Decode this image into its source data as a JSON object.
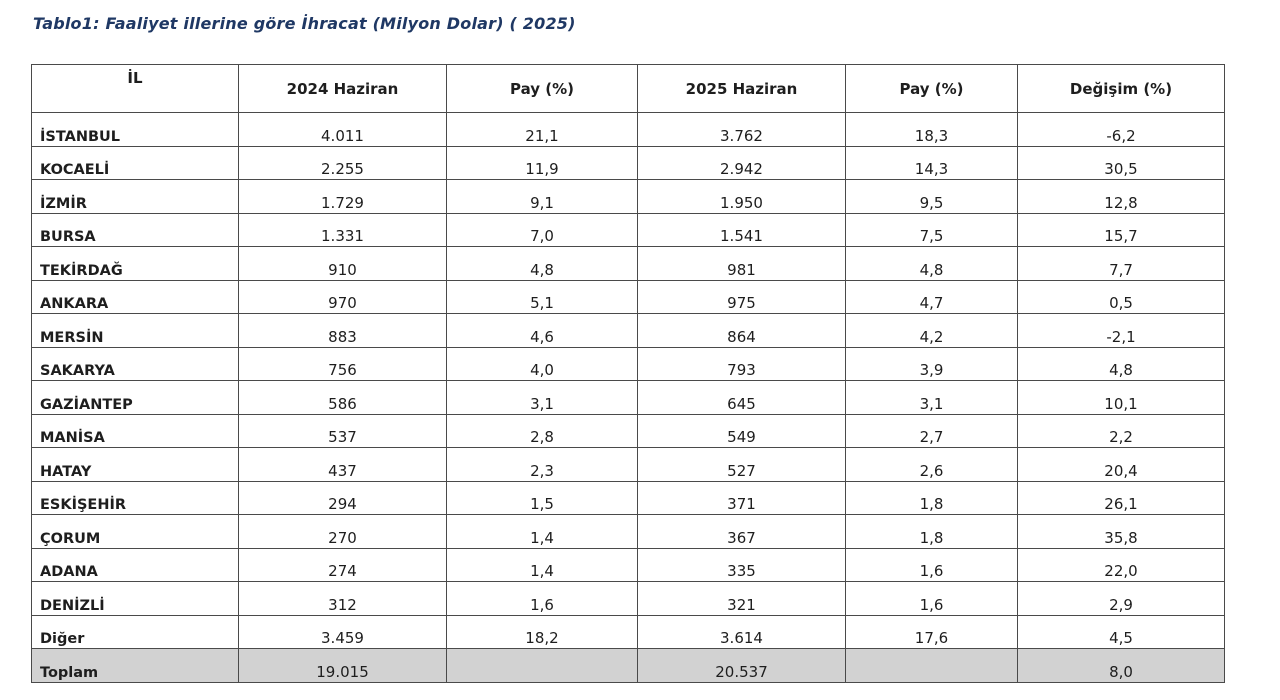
{
  "title": "Tablo1: Faaliyet illerine göre İhracat (Milyon Dolar) ( 2025)",
  "headers": {
    "il": "İL",
    "v2024": "2024 Haziran",
    "pay2024": "Pay  (%)",
    "v2025": "2025 Haziran",
    "pay2025": "Pay  (%)",
    "change": "Değişim (%)"
  },
  "rows": [
    {
      "il": "İSTANBUL",
      "v2024": "4.011",
      "pay2024": "21,1",
      "v2025": "3.762",
      "pay2025": "18,3",
      "change": "-6,2"
    },
    {
      "il": "KOCAELİ",
      "v2024": "2.255",
      "pay2024": "11,9",
      "v2025": "2.942",
      "pay2025": "14,3",
      "change": "30,5"
    },
    {
      "il": "İZMİR",
      "v2024": "1.729",
      "pay2024": "9,1",
      "v2025": "1.950",
      "pay2025": "9,5",
      "change": "12,8"
    },
    {
      "il": "BURSA",
      "v2024": "1.331",
      "pay2024": "7,0",
      "v2025": "1.541",
      "pay2025": "7,5",
      "change": "15,7"
    },
    {
      "il": "TEKİRDAĞ",
      "v2024": "910",
      "pay2024": "4,8",
      "v2025": "981",
      "pay2025": "4,8",
      "change": "7,7"
    },
    {
      "il": "ANKARA",
      "v2024": "970",
      "pay2024": "5,1",
      "v2025": "975",
      "pay2025": "4,7",
      "change": "0,5"
    },
    {
      "il": "MERSİN",
      "v2024": "883",
      "pay2024": "4,6",
      "v2025": "864",
      "pay2025": "4,2",
      "change": "-2,1"
    },
    {
      "il": "SAKARYA",
      "v2024": "756",
      "pay2024": "4,0",
      "v2025": "793",
      "pay2025": "3,9",
      "change": "4,8"
    },
    {
      "il": "GAZİANTEP",
      "v2024": "586",
      "pay2024": "3,1",
      "v2025": "645",
      "pay2025": "3,1",
      "change": "10,1"
    },
    {
      "il": "MANİSA",
      "v2024": "537",
      "pay2024": "2,8",
      "v2025": "549",
      "pay2025": "2,7",
      "change": "2,2"
    },
    {
      "il": "HATAY",
      "v2024": "437",
      "pay2024": "2,3",
      "v2025": "527",
      "pay2025": "2,6",
      "change": "20,4"
    },
    {
      "il": "ESKİŞEHİR",
      "v2024": "294",
      "pay2024": "1,5",
      "v2025": "371",
      "pay2025": "1,8",
      "change": "26,1"
    },
    {
      "il": "ÇORUM",
      "v2024": "270",
      "pay2024": "1,4",
      "v2025": "367",
      "pay2025": "1,8",
      "change": "35,8"
    },
    {
      "il": "ADANA",
      "v2024": "274",
      "pay2024": "1,4",
      "v2025": "335",
      "pay2025": "1,6",
      "change": "22,0"
    },
    {
      "il": "DENİZLİ",
      "v2024": "312",
      "pay2024": "1,6",
      "v2025": "321",
      "pay2025": "1,6",
      "change": "2,9"
    },
    {
      "il": "Diğer",
      "v2024": "3.459",
      "pay2024": "18,2",
      "v2025": "3.614",
      "pay2025": "17,6",
      "change": "4,5"
    }
  ],
  "total": {
    "il": "Toplam",
    "v2024": "19.015",
    "pay2024": "",
    "v2025": "20.537",
    "pay2025": "",
    "change": "8,0"
  },
  "colors": {
    "title": "#1f3864",
    "total_row_bg": "#d2d2d2",
    "border": "#4a4a4a"
  }
}
